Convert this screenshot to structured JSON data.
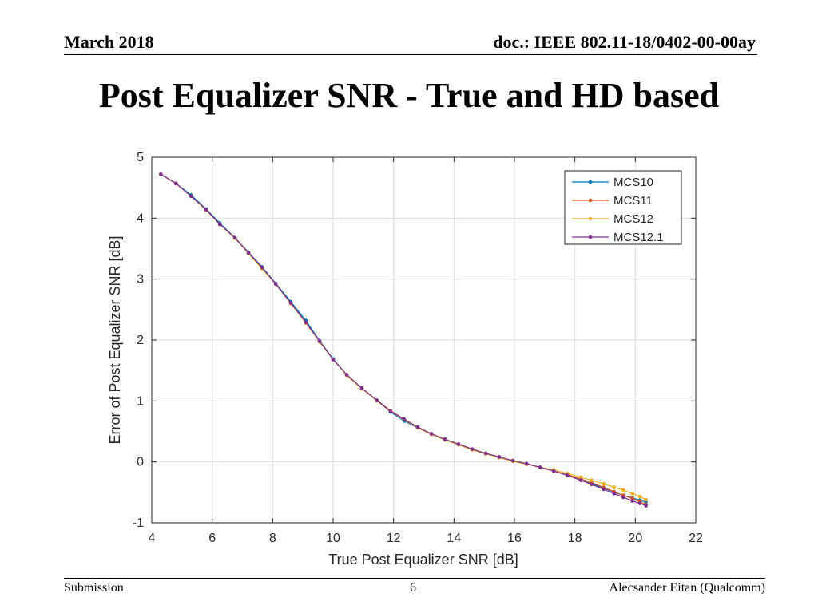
{
  "header": {
    "date": "March 2018",
    "doc": "doc.: IEEE 802.11-18/0402-00-00ay"
  },
  "slide_title": "Post Equalizer SNR - True and HD based",
  "footer": {
    "left": "Submission",
    "page": "6",
    "author": "Alecsander Eitan (Qualcomm)"
  },
  "chart_data": {
    "type": "line",
    "title": "",
    "xlabel": "True Post Equalizer SNR [dB]",
    "ylabel": "Error of Post Equalizer SNR [dB]",
    "xlim": [
      4,
      22
    ],
    "ylim": [
      -1,
      5
    ],
    "xticks": [
      4,
      6,
      8,
      10,
      12,
      14,
      16,
      18,
      20,
      22
    ],
    "yticks": [
      -1,
      0,
      1,
      2,
      3,
      4,
      5
    ],
    "grid": true,
    "legend_position": "top-right",
    "x": [
      4.3,
      4.8,
      5.3,
      5.8,
      6.25,
      6.75,
      7.2,
      7.65,
      8.1,
      8.6,
      9.1,
      9.55,
      10.0,
      10.45,
      10.95,
      11.45,
      11.9,
      12.35,
      12.8,
      13.25,
      13.7,
      14.15,
      14.6,
      15.05,
      15.5,
      15.95,
      16.4,
      16.85,
      17.3,
      17.75,
      18.2,
      18.55,
      18.95,
      19.3,
      19.6,
      19.9,
      20.15,
      20.35
    ],
    "series": [
      {
        "name": "MCS10",
        "color": "#0072BD",
        "values": [
          4.72,
          4.57,
          4.38,
          4.15,
          3.92,
          3.68,
          3.44,
          3.2,
          2.93,
          2.63,
          2.32,
          1.99,
          1.69,
          1.43,
          1.21,
          1.01,
          0.82,
          0.67,
          0.56,
          0.46,
          0.37,
          0.29,
          0.21,
          0.14,
          0.08,
          0.02,
          -0.03,
          -0.09,
          -0.15,
          -0.22,
          -0.3,
          -0.36,
          -0.43,
          -0.5,
          -0.55,
          -0.59,
          -0.63,
          -0.66
        ]
      },
      {
        "name": "MCS11",
        "color": "#D95319",
        "values": [
          4.72,
          4.57,
          4.36,
          4.14,
          3.9,
          3.68,
          3.43,
          3.18,
          2.92,
          2.6,
          2.28,
          1.98,
          1.68,
          1.43,
          1.21,
          1.01,
          0.84,
          0.7,
          0.57,
          0.46,
          0.37,
          0.29,
          0.21,
          0.14,
          0.08,
          0.02,
          -0.03,
          -0.09,
          -0.15,
          -0.21,
          -0.28,
          -0.34,
          -0.42,
          -0.49,
          -0.55,
          -0.6,
          -0.65,
          -0.7
        ]
      },
      {
        "name": "MCS12",
        "color": "#EDB120",
        "values": [
          4.72,
          4.57,
          4.36,
          4.13,
          3.9,
          3.67,
          3.42,
          3.17,
          2.92,
          2.6,
          2.28,
          1.97,
          1.68,
          1.42,
          1.2,
          1.0,
          0.83,
          0.69,
          0.56,
          0.45,
          0.36,
          0.28,
          0.2,
          0.13,
          0.07,
          0.01,
          -0.04,
          -0.09,
          -0.13,
          -0.19,
          -0.25,
          -0.3,
          -0.36,
          -0.42,
          -0.46,
          -0.52,
          -0.57,
          -0.62
        ]
      },
      {
        "name": "MCS12.1",
        "color": "#7E2F8E",
        "values": [
          4.72,
          4.57,
          4.36,
          4.14,
          3.9,
          3.68,
          3.43,
          3.19,
          2.92,
          2.61,
          2.29,
          1.98,
          1.68,
          1.43,
          1.21,
          1.01,
          0.83,
          0.7,
          0.57,
          0.46,
          0.37,
          0.29,
          0.21,
          0.14,
          0.08,
          0.02,
          -0.03,
          -0.09,
          -0.15,
          -0.22,
          -0.3,
          -0.37,
          -0.45,
          -0.52,
          -0.58,
          -0.64,
          -0.68,
          -0.72
        ]
      }
    ]
  }
}
